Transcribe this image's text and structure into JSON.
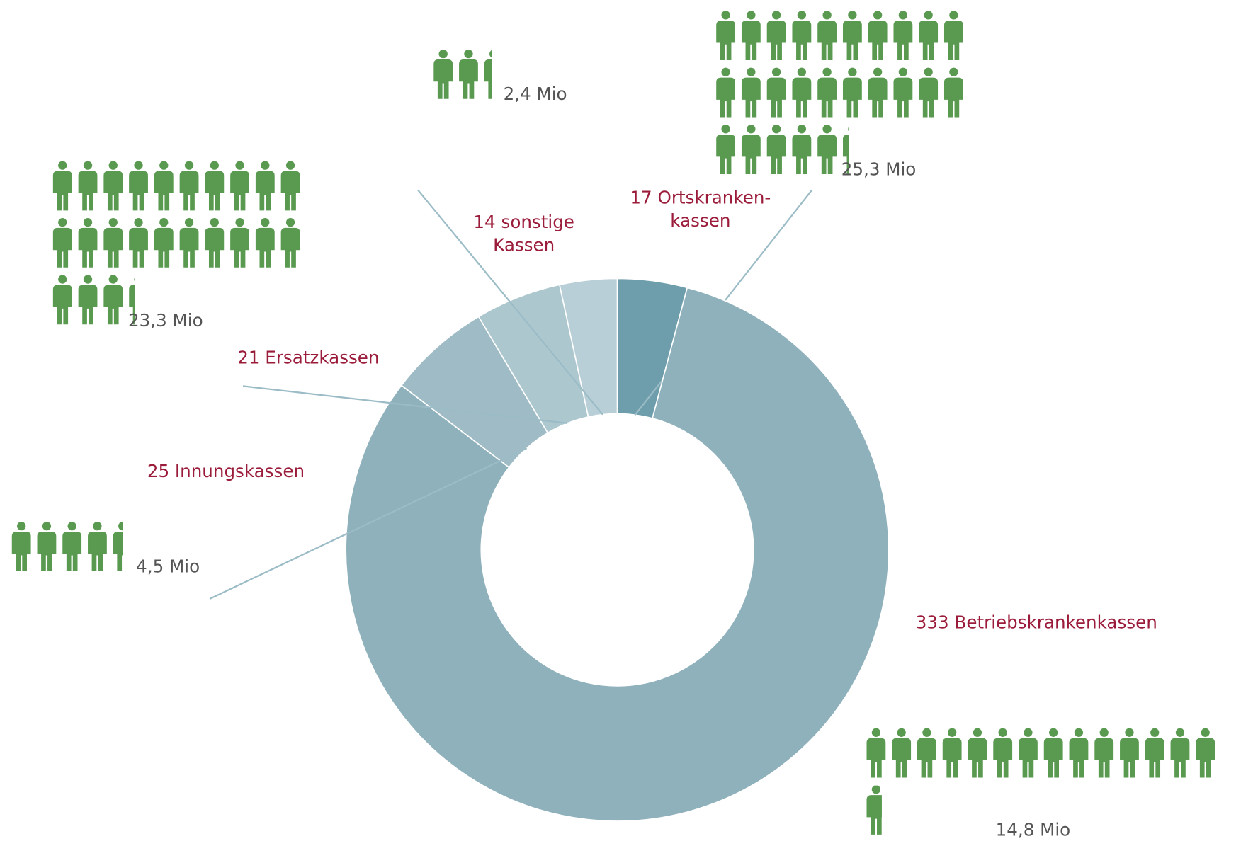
{
  "chart_data": {
    "type": "donut",
    "categories": [
      [
        "17 Ortskranken-",
        "kassen"
      ],
      [
        "333 Betriebskrankenkassen"
      ],
      [
        "25 Innungskassen"
      ],
      [
        "21 Ersatzkassen"
      ],
      [
        "14 sonstige",
        "Kassen"
      ]
    ],
    "values": [
      17,
      333,
      25,
      21,
      14
    ],
    "colors": [
      "#6e9dab",
      "#8fb1bc",
      "#9fbcc6",
      "#adc7cf",
      "#b9cfd7"
    ],
    "label_color": "#9b1c3a",
    "members": {
      "values": [
        25.3,
        14.8,
        4.5,
        23.3,
        2.4
      ],
      "value_labels": [
        "25,3 Mio",
        "14,8 Mio",
        "4,5 Mio",
        "23,3 Mio",
        "2,4 Mio"
      ],
      "color": "#5a9a50"
    }
  }
}
